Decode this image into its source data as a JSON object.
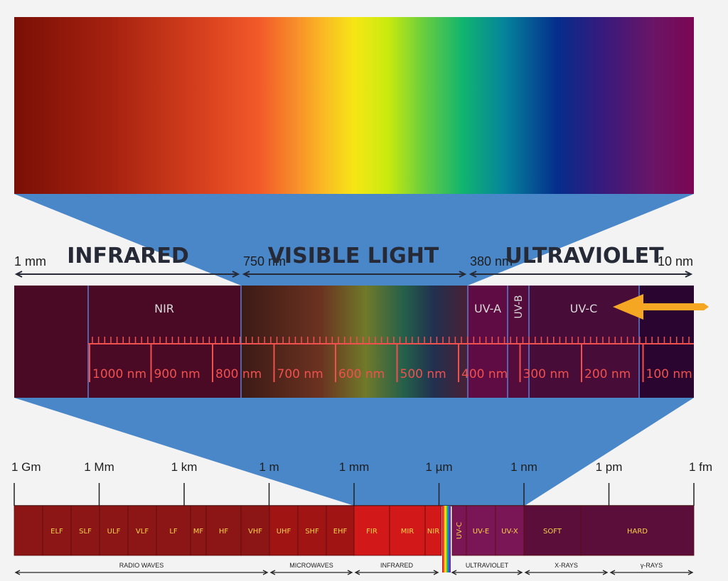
{
  "top_scale": {
    "ticks": [
      {
        "label": "1 mm"
      },
      {
        "label": "750 nm"
      },
      {
        "label": "380 nm"
      },
      {
        "label": "10 nm"
      }
    ],
    "regions": [
      "INFRARED",
      "VISIBLE LIGHT",
      "ULTRAVIOLET"
    ]
  },
  "zoom_bar": {
    "sub_labels": [
      "NIR",
      "UV-A",
      "UV-B",
      "UV-C"
    ],
    "nm_labels": [
      "1000 nm",
      "900 nm",
      "800 nm",
      "700 nm",
      "600 nm",
      "500 nm",
      "400 nm",
      "300 nm",
      "200 nm",
      "100 nm"
    ],
    "arrow_color": "#f5a623",
    "arrow_icon": "arrow-left-icon"
  },
  "bottom_scale": {
    "ticks": [
      "1 Gm",
      "1 Mm",
      "1 km",
      "1 m",
      "1 mm",
      "1 µm",
      "1 nm",
      "1 pm",
      "1 fm"
    ]
  },
  "bands": [
    "ELF",
    "SLF",
    "ULF",
    "VLF",
    "LF",
    "MF",
    "HF",
    "VHF",
    "UHF",
    "SHF",
    "EHF",
    "FIR",
    "MIR",
    "NIR",
    "UV-C",
    "UV-E",
    "UV-X",
    "SOFT",
    "HARD"
  ],
  "categories": [
    "RADIO WAVES",
    "MICROWAVES",
    "INFRARED",
    "ULTRAVIOLET",
    "X-RAYS",
    "γ-RAYS"
  ],
  "colors": {
    "projection": "#4a87c9",
    "zoom_background": "#4a0a26",
    "radio": "#8c1515",
    "microwave": "#a01414",
    "infrared": "#d21818",
    "ultraviolet": "#7a1655",
    "xray": "#5c0e3a",
    "accent_red": "#f0504e"
  }
}
